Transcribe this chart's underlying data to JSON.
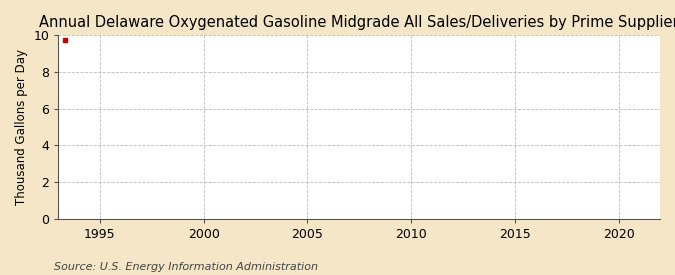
{
  "title": "Annual Delaware Oxygenated Gasoline Midgrade All Sales/Deliveries by Prime Supplier",
  "ylabel": "Thousand Gallons per Day",
  "source_text": "Source: U.S. Energy Information Administration",
  "background_color": "#f5e6c8",
  "plot_bg_color": "#ffffff",
  "xlim": [
    1993,
    2022
  ],
  "ylim": [
    0,
    10
  ],
  "xticks": [
    1995,
    2000,
    2005,
    2010,
    2015,
    2020
  ],
  "yticks": [
    0,
    2,
    4,
    6,
    8,
    10
  ],
  "grid_color": "#bbbbbb",
  "axis_color": "#555555",
  "data_point_x": 1993.3,
  "data_point_y": 9.75,
  "data_point_color": "#cc0000",
  "title_fontsize": 10.5,
  "label_fontsize": 8.5,
  "tick_fontsize": 9,
  "source_fontsize": 8
}
